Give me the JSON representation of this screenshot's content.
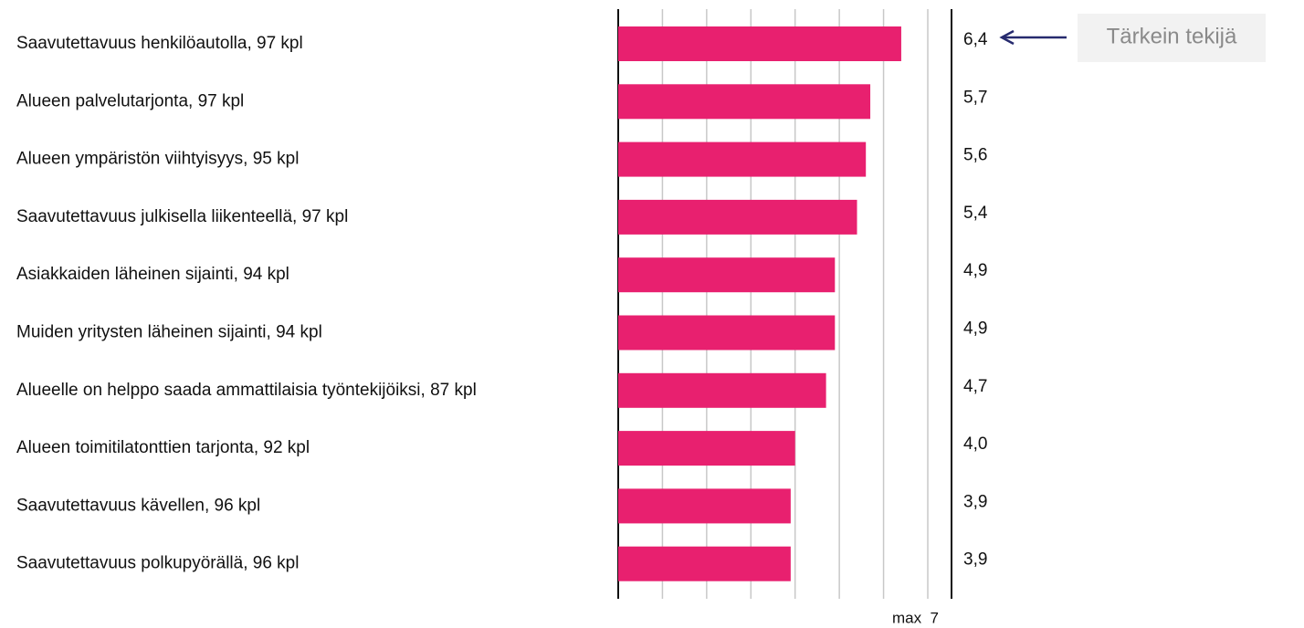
{
  "chart_data": {
    "type": "hbar",
    "categories": [
      "Saavutettavuus henkilöautolla, 97 kpl",
      "Alueen palvelutarjonta, 97 kpl",
      "Alueen ympäristön viihtyisyys, 95 kpl",
      "Saavutettavuus julkisella liikenteellä, 97 kpl",
      "Asiakkaiden läheinen sijainti, 94 kpl",
      "Muiden yritysten läheinen sijainti, 94 kpl",
      "Alueelle on helppo saada ammattilaisia työntekijöiksi, 87 kpl",
      "Alueen toimitilatonttien tarjonta, 92 kpl",
      "Saavutettavuus kävellen, 96 kpl",
      "Saavutettavuus polkupyörällä, 96 kpl"
    ],
    "values": [
      6.4,
      5.7,
      5.6,
      5.4,
      4.9,
      4.9,
      4.7,
      4.0,
      3.9,
      3.9
    ],
    "value_labels": [
      "6,4",
      "5,7",
      "5,6",
      "5,4",
      "4,9",
      "4,9",
      "4,7",
      "4,0",
      "3,9",
      "3,9"
    ],
    "color": "#e8206f",
    "xlim": [
      0,
      7
    ],
    "xticks": [
      {
        "value": 7,
        "label": "max  7"
      }
    ],
    "grid_lines": [
      1,
      2,
      3,
      4,
      5,
      6,
      7
    ],
    "annotation": "Tärkein tekijä"
  }
}
